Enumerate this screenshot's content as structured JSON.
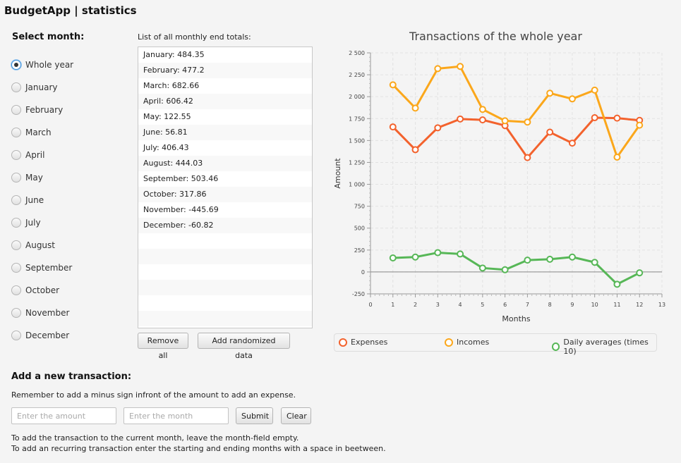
{
  "app": {
    "title": "BudgetApp | statistics"
  },
  "month_selector": {
    "label": "Select month:",
    "selected": "Whole year",
    "options": [
      "Whole year",
      "January",
      "February",
      "March",
      "April",
      "May",
      "June",
      "July",
      "August",
      "September",
      "October",
      "November",
      "December"
    ]
  },
  "totals_list": {
    "caption": "List of all monthly end totals:",
    "items": [
      "January: 484.35",
      "February: 477.2",
      "March: 682.66",
      "April: 606.42",
      "May: 122.55",
      "June: 56.81",
      "July: 406.43",
      "August: 444.03",
      "September: 503.46",
      "October: 317.86",
      "November: -445.69",
      "December: -60.82"
    ]
  },
  "list_buttons": {
    "remove_all": "Remove all",
    "add_random": "Add randomized data"
  },
  "chart_data": {
    "type": "line",
    "title": "Transactions of the whole year",
    "xlabel": "Months",
    "ylabel": "Amount",
    "xlim": [
      0,
      13
    ],
    "ylim": [
      -250,
      2500
    ],
    "x_ticks": [
      0,
      1,
      2,
      3,
      4,
      5,
      6,
      7,
      8,
      9,
      10,
      11,
      12,
      13
    ],
    "y_ticks": [
      -250,
      0,
      250,
      500,
      750,
      1000,
      1250,
      1500,
      1750,
      2000,
      2250,
      2500
    ],
    "y_tick_labels": [
      "-250",
      "0",
      "250",
      "500",
      "750",
      "1 000",
      "1 250",
      "1 500",
      "1 750",
      "2 000",
      "2 250",
      "2 500"
    ],
    "grid": true,
    "legend": "bottom",
    "x": [
      1,
      2,
      3,
      4,
      5,
      6,
      7,
      8,
      9,
      10,
      11,
      12
    ],
    "series": [
      {
        "name": "Expenses",
        "color": "#f3622d",
        "values": [
          1655,
          1395,
          1645,
          1745,
          1735,
          1670,
          1305,
          1595,
          1470,
          1760,
          1755,
          1730
        ]
      },
      {
        "name": "Incomes",
        "color": "#fba71b",
        "values": [
          2135,
          1870,
          2320,
          2345,
          1855,
          1725,
          1710,
          2040,
          1975,
          2075,
          1310,
          1675
        ]
      },
      {
        "name": "Daily averages (times 10)",
        "color": "#57b757",
        "values": [
          160,
          170,
          220,
          205,
          45,
          25,
          135,
          145,
          170,
          110,
          -140,
          -10
        ]
      }
    ]
  },
  "add_transaction": {
    "heading": "Add a new transaction:",
    "hint_minus": "Remember to add a minus sign infront of the amount to add an expense.",
    "amount_placeholder": "Enter the amount",
    "month_placeholder": "Enter the month",
    "submit_label": "Submit",
    "clear_label": "Clear",
    "hint_current": "To add the transaction to the current month, leave the month-field empty.",
    "hint_recurring": "To add an recurring transaction enter the starting and ending months with a space in beetween."
  }
}
